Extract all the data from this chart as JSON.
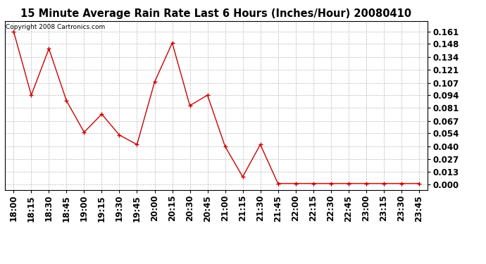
{
  "title": "15 Minute Average Rain Rate Last 6 Hours (Inches/Hour) 20080410",
  "copyright_text": "Copyright 2008 Cartronics.com",
  "x_labels": [
    "18:00",
    "18:15",
    "18:30",
    "18:45",
    "19:00",
    "19:15",
    "19:30",
    "19:45",
    "20:00",
    "20:15",
    "20:30",
    "20:45",
    "21:00",
    "21:15",
    "21:30",
    "21:45",
    "22:00",
    "22:15",
    "22:30",
    "22:45",
    "23:00",
    "23:15",
    "23:30",
    "23:45"
  ],
  "y_values": [
    0.161,
    0.094,
    0.143,
    0.088,
    0.055,
    0.074,
    0.052,
    0.042,
    0.108,
    0.149,
    0.083,
    0.094,
    0.04,
    0.008,
    0.042,
    0.001,
    0.001,
    0.001,
    0.001,
    0.001,
    0.001,
    0.001,
    0.001,
    0.001
  ],
  "line_color": "#cc0000",
  "marker": "+",
  "marker_size": 5,
  "background_color": "#ffffff",
  "plot_bg_color": "#ffffff",
  "grid_color": "#bbbbbb",
  "yticks": [
    0.0,
    0.013,
    0.027,
    0.04,
    0.054,
    0.067,
    0.081,
    0.094,
    0.107,
    0.121,
    0.134,
    0.148,
    0.161
  ],
  "ylim": [
    -0.006,
    0.172
  ],
  "title_fontsize": 10.5,
  "copyright_fontsize": 6.5,
  "tick_fontsize": 8.5
}
